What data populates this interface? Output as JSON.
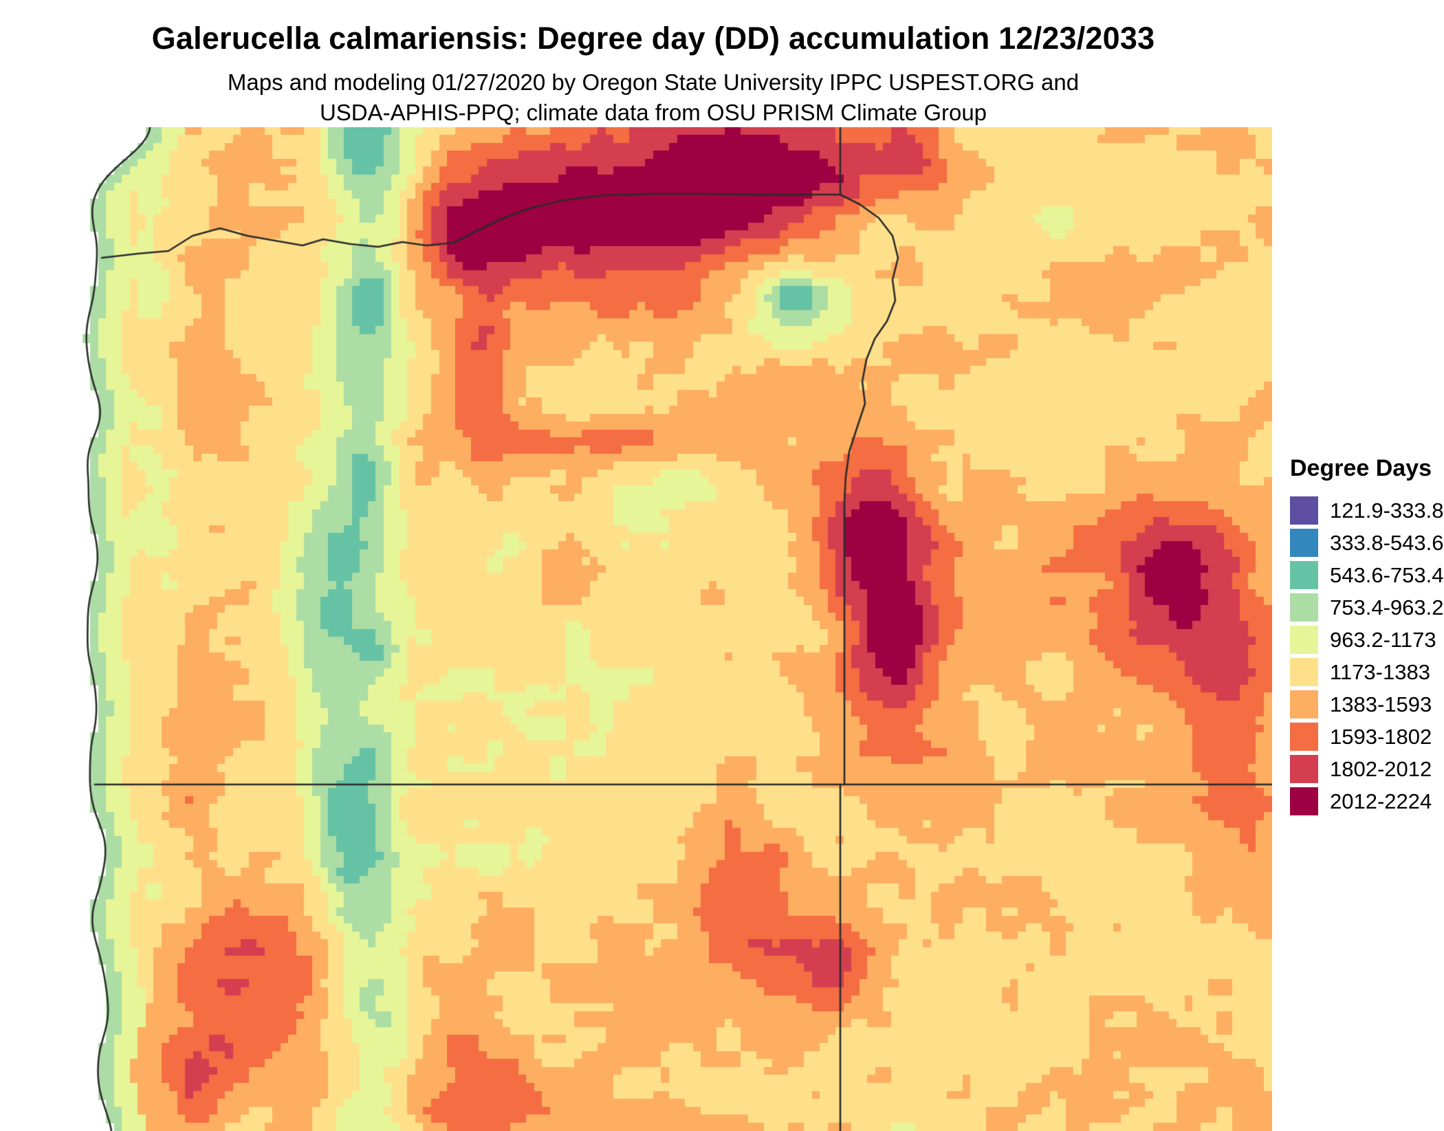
{
  "header": {
    "title": "Galerucella calmariensis: Degree day (DD) accumulation 12/23/2033",
    "subtitle_line1": "Maps and modeling 01/27/2020 by Oregon State University IPPC USPEST.ORG and",
    "subtitle_line2": "USDA-APHIS-PPQ; climate data from OSU PRISM Climate Group"
  },
  "legend": {
    "title": "Degree Days",
    "items": [
      {
        "label": "121.9-333.8",
        "color": "#5e4fa2"
      },
      {
        "label": "333.8-543.6",
        "color": "#3288bd"
      },
      {
        "label": "543.6-753.4",
        "color": "#66c2a5"
      },
      {
        "label": "753.4-963.2",
        "color": "#abdda4"
      },
      {
        "label": "963.2-1173",
        "color": "#e6f598"
      },
      {
        "label": "1173-1383",
        "color": "#fee08b"
      },
      {
        "label": "1383-1593",
        "color": "#fdae61"
      },
      {
        "label": "1593-1802",
        "color": "#f46d43"
      },
      {
        "label": "1802-2012",
        "color": "#d53e4f"
      },
      {
        "label": "2012-2224",
        "color": "#9e0142"
      }
    ]
  },
  "map": {
    "value_min": 121.9,
    "value_max": 2224,
    "thresholds": [
      333.8,
      543.6,
      753.4,
      963.2,
      1173,
      1383,
      1593,
      1802,
      2012
    ],
    "colors": [
      "#5e4fa2",
      "#3288bd",
      "#66c2a5",
      "#abdda4",
      "#e6f598",
      "#fee08b",
      "#fdae61",
      "#f46d43",
      "#d53e4f",
      "#9e0142"
    ],
    "border_color": "#2b2b2b",
    "grid": {
      "cols": 150,
      "rows": 126
    },
    "features": [
      [
        0.451,
        0.072,
        780,
        0.17,
        0.1
      ],
      [
        0.578,
        0.031,
        600,
        0.1,
        0.08
      ],
      [
        0.335,
        0.099,
        380,
        0.06,
        0.045
      ],
      [
        0.335,
        0.25,
        380,
        0.022,
        0.1
      ],
      [
        0.434,
        0.312,
        340,
        0.08,
        0.022
      ],
      [
        0.405,
        0.449,
        300,
        0.025,
        0.03
      ],
      [
        0.104,
        0.25,
        230,
        0.035,
        0.17
      ],
      [
        0.133,
        0.829,
        450,
        0.055,
        0.07
      ],
      [
        0.104,
        0.942,
        380,
        0.05,
        0.05
      ],
      [
        0.087,
        0.654,
        220,
        0.035,
        0.05
      ],
      [
        0.595,
        0.175,
        -620,
        0.055,
        0.05
      ],
      [
        0.6,
        0.172,
        -350,
        0.022,
        0.02
      ],
      [
        0.675,
        0.11,
        -220,
        0.03,
        0.04
      ],
      [
        0.665,
        0.394,
        620,
        0.045,
        0.09
      ],
      [
        0.682,
        0.517,
        600,
        0.04,
        0.1
      ],
      [
        0.913,
        0.442,
        620,
        0.06,
        0.08
      ],
      [
        0.965,
        0.558,
        520,
        0.05,
        0.1
      ],
      [
        0.555,
        0.757,
        470,
        0.05,
        0.07
      ],
      [
        0.63,
        0.832,
        420,
        0.055,
        0.055
      ],
      [
        0.335,
        0.969,
        360,
        0.05,
        0.05
      ],
      [
        0.254,
        0.955,
        260,
        0.05,
        0.05
      ],
      [
        0.434,
        0.558,
        -270,
        0.09,
        0.09
      ],
      [
        0.468,
        0.394,
        -200,
        0.06,
        0.05
      ],
      [
        0.405,
        0.716,
        -220,
        0.08,
        0.06
      ],
      [
        0.827,
        0.099,
        -200,
        0.07,
        0.08
      ],
      [
        0.855,
        0.271,
        -200,
        0.07,
        0.06
      ],
      [
        0.699,
        0.021,
        350,
        0.04,
        0.05
      ],
      [
        0.225,
        0.035,
        -330,
        0.03,
        0.04
      ],
      [
        0.246,
        0.17,
        -330,
        0.02,
        0.028
      ],
      [
        0.24,
        0.35,
        -280,
        0.018,
        0.025
      ],
      [
        0.25,
        0.52,
        -300,
        0.018,
        0.03
      ],
      [
        0.246,
        0.63,
        -260,
        0.018,
        0.025
      ],
      [
        0.53,
        0.23,
        -200,
        0.02,
        0.02
      ],
      [
        0.51,
        0.353,
        -180,
        0.025,
        0.025
      ]
    ]
  }
}
